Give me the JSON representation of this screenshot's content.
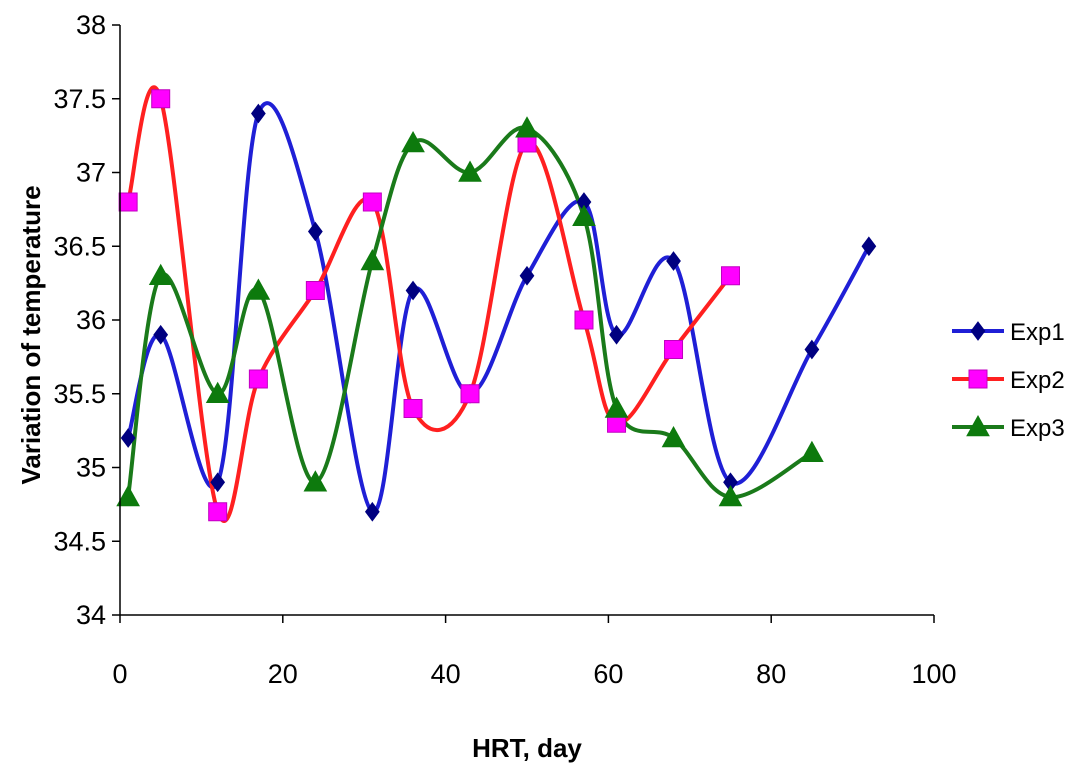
{
  "chart_data": {
    "type": "line",
    "smooth": true,
    "xlabel": "HRT, day",
    "ylabel": "Variation of temperature",
    "xlim": [
      0,
      100
    ],
    "ylim": [
      34,
      38
    ],
    "x_ticks": [
      0,
      20,
      40,
      60,
      80,
      100
    ],
    "x_tick_labels": [
      "0",
      "20",
      "40",
      "60",
      "80",
      "100"
    ],
    "y_ticks": [
      34,
      34.5,
      35,
      35.5,
      36,
      36.5,
      37,
      37.5,
      38
    ],
    "y_tick_labels": [
      "34",
      "34.5",
      "35",
      "35.5",
      "36",
      "36.5",
      "37",
      "37.5",
      "38"
    ],
    "grid": false,
    "legend_position": "right",
    "series": [
      {
        "name": "Exp1",
        "color": "#1f1fd6",
        "marker": "diamond",
        "marker_color": "#000080",
        "x": [
          1,
          5,
          12,
          17,
          24,
          31,
          36,
          43,
          50,
          57,
          61,
          68,
          75,
          85,
          92
        ],
        "y": [
          35.2,
          35.9,
          34.9,
          37.4,
          36.6,
          34.7,
          36.2,
          35.5,
          36.3,
          36.8,
          35.9,
          36.4,
          34.9,
          35.8,
          36.5
        ]
      },
      {
        "name": "Exp2",
        "color": "#ff2020",
        "marker": "square",
        "marker_color": "#ff00ff",
        "x": [
          1,
          5,
          12,
          17,
          24,
          31,
          36,
          43,
          50,
          57,
          61,
          68,
          75
        ],
        "y": [
          36.8,
          37.5,
          34.7,
          35.6,
          36.2,
          36.8,
          35.4,
          35.5,
          37.2,
          36.0,
          35.3,
          35.8,
          36.3
        ]
      },
      {
        "name": "Exp3",
        "color": "#1a7a1a",
        "marker": "triangle",
        "marker_color": "#0d7a0d",
        "x": [
          1,
          5,
          12,
          17,
          24,
          31,
          36,
          43,
          50,
          57,
          61,
          68,
          75,
          85
        ],
        "y": [
          34.8,
          36.3,
          35.5,
          36.2,
          34.9,
          36.4,
          37.2,
          37.0,
          37.3,
          36.7,
          35.4,
          35.2,
          34.8,
          35.1
        ]
      }
    ]
  }
}
